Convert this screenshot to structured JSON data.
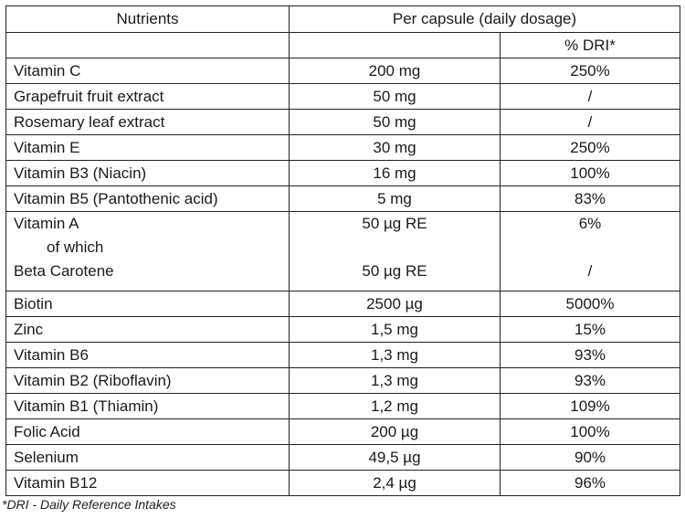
{
  "table": {
    "header": {
      "nutrients": "Nutrients",
      "per_capsule": "Per capsule (daily dosage)",
      "dri": "% DRI*"
    },
    "rows": [
      {
        "name": "Vitamin C",
        "amount": "200 mg",
        "dri": "250%"
      },
      {
        "name": "Grapefruit fruit extract",
        "amount": "50 mg",
        "dri": "/"
      },
      {
        "name": "Rosemary leaf extract",
        "amount": "50 mg",
        "dri": "/"
      },
      {
        "name": "Vitamin E",
        "amount": "30 mg",
        "dri": "250%"
      },
      {
        "name": "Vitamin B3 (Niacin)",
        "amount": "16 mg",
        "dri": "100%"
      },
      {
        "name": "Vitamin B5 (Pantothenic acid)",
        "amount": "5 mg",
        "dri": "83%"
      }
    ],
    "vitamin_a": {
      "name": "Vitamin A",
      "of_which": "of which",
      "sub_name": "Beta Carotene",
      "amount": "50 µg RE",
      "dri": "6%",
      "sub_amount": "50 µg RE",
      "sub_dri": "/"
    },
    "rows2": [
      {
        "name": "Biotin",
        "amount": "2500 µg",
        "dri": "5000%"
      },
      {
        "name": "Zinc",
        "amount": "1,5 mg",
        "dri": "15%"
      },
      {
        "name": "Vitamin B6",
        "amount": "1,3 mg",
        "dri": "93%"
      },
      {
        "name": "Vitamin B2 (Riboflavin)",
        "amount": "1,3 mg",
        "dri": "93%"
      },
      {
        "name": "Vitamin B1 (Thiamin)",
        "amount": "1,2 mg",
        "dri": "109%"
      },
      {
        "name": "Folic Acid",
        "amount": "200 µg",
        "dri": "100%"
      },
      {
        "name": "Selenium",
        "amount": "49,5 µg",
        "dri": "90%"
      },
      {
        "name": "Vitamin B12",
        "amount": "2,4 µg",
        "dri": "96%"
      }
    ]
  },
  "footnote": "*DRI - Daily Reference Intakes"
}
